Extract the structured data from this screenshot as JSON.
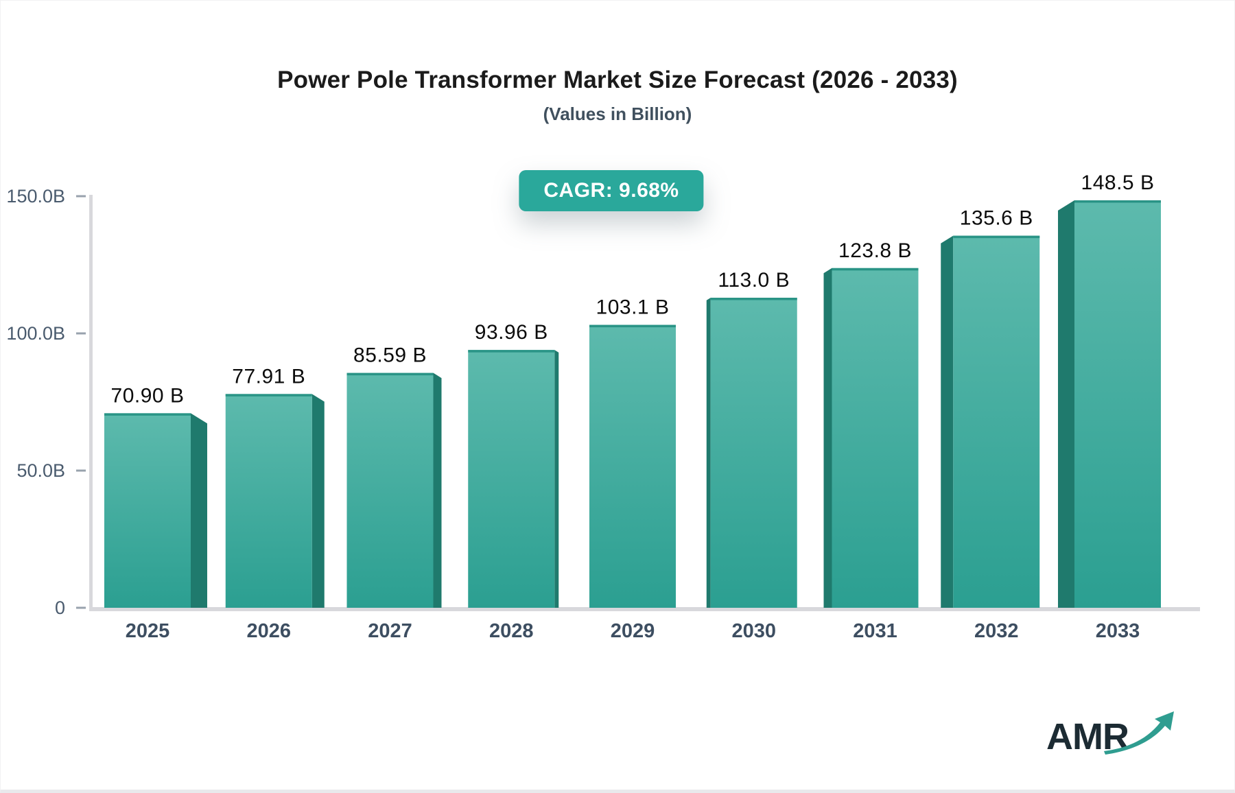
{
  "chart_data": {
    "type": "bar",
    "title": "Power Pole Transformer Market Size Forecast (2026 - 2033)",
    "subtitle": "(Values in Billion)",
    "annotation": "CAGR: 9.68%",
    "categories": [
      "2025",
      "2026",
      "2027",
      "2028",
      "2029",
      "2030",
      "2031",
      "2032",
      "2033"
    ],
    "values": [
      70.9,
      77.91,
      85.59,
      93.96,
      103.1,
      113.0,
      123.8,
      135.6,
      148.5
    ],
    "bar_labels": [
      "70.90 B",
      "77.91 B",
      "85.59 B",
      "93.96 B",
      "103.1 B",
      "113.0 B",
      "123.8 B",
      "135.6 B",
      "148.5 B"
    ],
    "xlabel": "",
    "ylabel": "",
    "ylim": [
      0,
      157
    ],
    "yticks": [
      {
        "value": 150,
        "label": "150.0B"
      },
      {
        "value": 100,
        "label": "100.0B"
      },
      {
        "value": 50,
        "label": "50.0B"
      },
      {
        "value": 0,
        "label": "0"
      }
    ],
    "grid": false,
    "legend": false,
    "effect": "3d-perspective",
    "colors": {
      "bar_top": "#5dbaad",
      "bar_bottom": "#2b9f91",
      "bar_side": "#1f7a6d",
      "bar_top_edge": "#2a9486",
      "axis": "#d8d8dc",
      "tick_label": "#4a5b6e",
      "year_label": "#3d4e61",
      "value_label": "#0c0c0c",
      "badge_bg": "#2aa89b"
    }
  },
  "watermark": {
    "text": "AMR",
    "arrow_color": "#2f9d90"
  }
}
